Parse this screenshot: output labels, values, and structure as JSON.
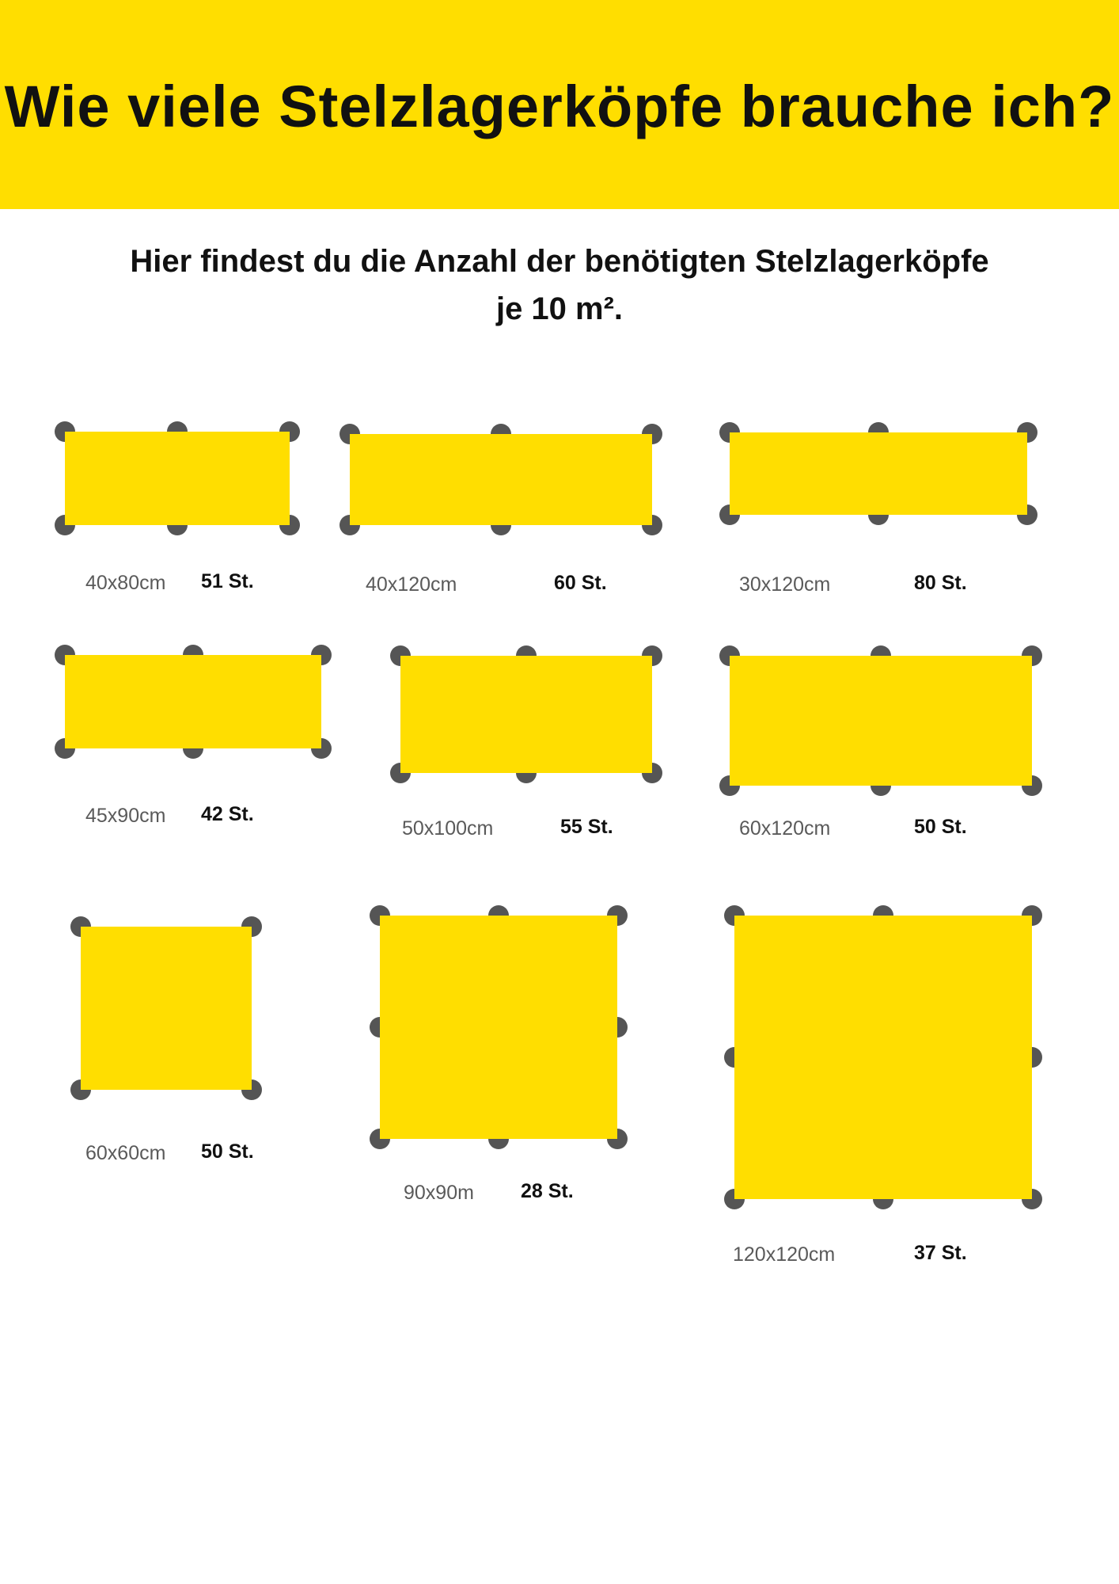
{
  "header": {
    "title": "Wie viele Stelzlagerköpfe brauche ich?"
  },
  "subtitle": {
    "line1": "Hier findest du die Anzahl der benötigten Stelzlagerköpfe",
    "line2": "je 10 m²."
  },
  "colors": {
    "tile": "#ffde00",
    "pedestal": "#555555",
    "banner": "#ffde00"
  },
  "tiles": [
    {
      "size": "40x80cm",
      "count": "51 St.",
      "columns": 3,
      "rows": 2
    },
    {
      "size": "40x120cm",
      "count": "60 St.",
      "columns": 3,
      "rows": 2
    },
    {
      "size": "30x120cm",
      "count": "80 St.",
      "columns": 3,
      "rows": 2
    },
    {
      "size": "45x90cm",
      "count": "42 St.",
      "columns": 3,
      "rows": 2
    },
    {
      "size": "50x100cm",
      "count": "55 St.",
      "columns": 3,
      "rows": 2
    },
    {
      "size": "60x120cm",
      "count": "50 St.",
      "columns": 3,
      "rows": 2
    },
    {
      "size": "60x60cm",
      "count": "50 St.",
      "columns": 2,
      "rows": 2
    },
    {
      "size": "90x90m",
      "count": "28 St.",
      "columns": 3,
      "rows": 3
    },
    {
      "size": "120x120cm",
      "count": "37 St.",
      "columns": 3,
      "rows": 3
    }
  ]
}
